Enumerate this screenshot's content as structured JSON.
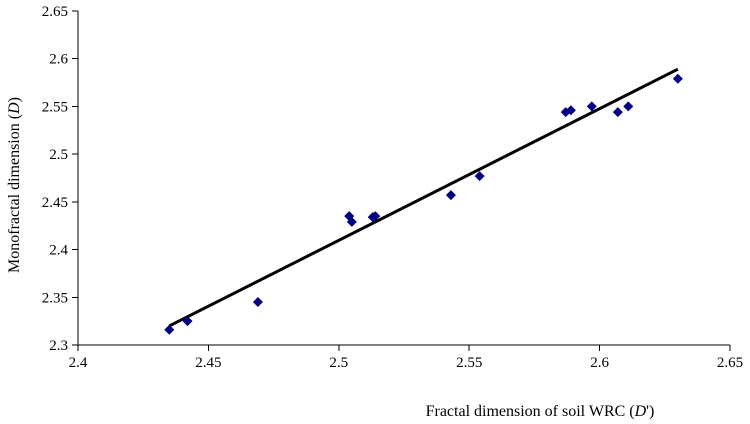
{
  "chart_data": {
    "type": "scatter",
    "title": "",
    "xlabel": {
      "before": "Fractal dimension of soil WRC (",
      "var": "D",
      "after": "')"
    },
    "ylabel": {
      "before": "Monofractal dimension (",
      "var": "D",
      "after": ")"
    },
    "xlim": [
      2.4,
      2.65
    ],
    "ylim": [
      2.3,
      2.65
    ],
    "xticks": [
      "2.4",
      "2.45",
      "2.5",
      "2.55",
      "2.6",
      "2.65"
    ],
    "yticks": [
      "2.3",
      "2.35",
      "2.4",
      "2.45",
      "2.5",
      "2.55",
      "2.6",
      "2.65"
    ],
    "grid": false,
    "legend": "none",
    "marker": "diamond",
    "marker_color": "#000080",
    "line_color": "#000000",
    "points": [
      {
        "x": 2.435,
        "y": 2.316
      },
      {
        "x": 2.442,
        "y": 2.325
      },
      {
        "x": 2.469,
        "y": 2.345
      },
      {
        "x": 2.504,
        "y": 2.435
      },
      {
        "x": 2.505,
        "y": 2.429
      },
      {
        "x": 2.513,
        "y": 2.434
      },
      {
        "x": 2.514,
        "y": 2.435
      },
      {
        "x": 2.543,
        "y": 2.457
      },
      {
        "x": 2.554,
        "y": 2.477
      },
      {
        "x": 2.587,
        "y": 2.544
      },
      {
        "x": 2.589,
        "y": 2.546
      },
      {
        "x": 2.597,
        "y": 2.55
      },
      {
        "x": 2.607,
        "y": 2.544
      },
      {
        "x": 2.611,
        "y": 2.55
      },
      {
        "x": 2.63,
        "y": 2.579
      }
    ],
    "trendline": {
      "x": [
        2.435,
        2.63
      ],
      "y": [
        2.32,
        2.589
      ]
    }
  }
}
